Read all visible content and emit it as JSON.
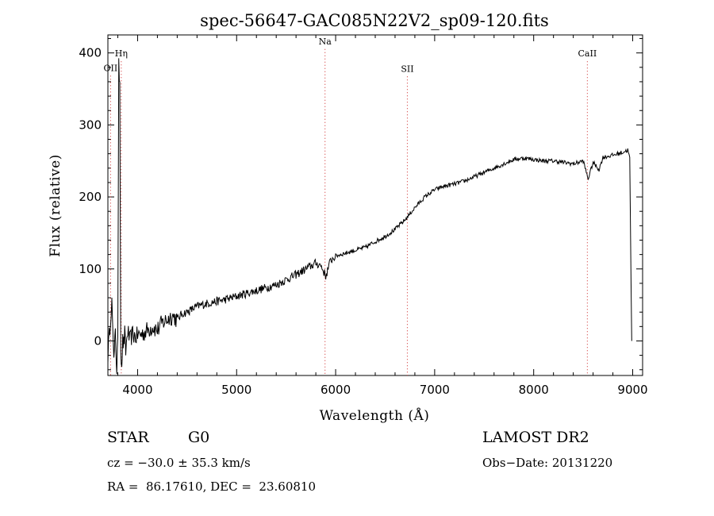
{
  "chart_data": {
    "type": "line",
    "title": "spec-56647-GAC085N22V2_sp09-120.fits",
    "xlabel": "Wavelength (Å)",
    "ylabel": "Flux (relative)",
    "xlim": [
      3700,
      9100
    ],
    "ylim": [
      -48,
      425
    ],
    "x_ticks": [
      4000,
      5000,
      6000,
      7000,
      8000,
      9000
    ],
    "y_ticks": [
      0,
      100,
      200,
      300,
      400
    ],
    "grid": false,
    "line_color": "#000000",
    "marker_color": "#cc2222",
    "series": [
      {
        "x": [
          3700,
          3720,
          3740,
          3760,
          3775,
          3790,
          3800,
          3810,
          3820,
          3830,
          3840,
          3850,
          3860,
          3870,
          3880,
          3900,
          3920,
          3950,
          3980,
          4000,
          4050,
          4100,
          4150,
          4200,
          4250,
          4300,
          4350,
          4400,
          4450,
          4500,
          4600,
          4700,
          4800,
          4900,
          5000,
          5100,
          5200,
          5300,
          5400,
          5500,
          5600,
          5700,
          5800,
          5850,
          5900,
          5950,
          6000,
          6100,
          6200,
          6300,
          6400,
          6500,
          6600,
          6700,
          6800,
          6900,
          7000,
          7100,
          7200,
          7300,
          7400,
          7500,
          7600,
          7700,
          7800,
          7900,
          8000,
          8100,
          8200,
          8300,
          8400,
          8500,
          8550,
          8600,
          8660,
          8700,
          8800,
          8900,
          8950,
          8970,
          8990
        ],
        "y": [
          -20,
          20,
          60,
          -30,
          10,
          -40,
          5,
          380,
          360,
          -10,
          -30,
          0,
          -5,
          10,
          -15,
          15,
          0,
          10,
          5,
          8,
          10,
          15,
          20,
          15,
          25,
          30,
          35,
          30,
          38,
          40,
          48,
          52,
          55,
          58,
          62,
          66,
          70,
          74,
          78,
          85,
          92,
          100,
          108,
          105,
          90,
          112,
          118,
          122,
          126,
          130,
          138,
          145,
          155,
          168,
          185,
          200,
          210,
          215,
          218,
          222,
          228,
          234,
          240,
          246,
          252,
          254,
          252,
          250,
          250,
          248,
          246,
          250,
          225,
          248,
          238,
          255,
          258,
          262,
          265,
          255,
          0
        ]
      }
    ],
    "spectral_lines": [
      {
        "label": "OII",
        "x": 3727,
        "label_y": 375
      },
      {
        "label": "Hη",
        "x": 3835,
        "label_y": 395
      },
      {
        "label": "Na",
        "x": 5893,
        "label_y": 412
      },
      {
        "label": "SII",
        "x": 6724,
        "label_y": 374
      },
      {
        "label": "CaII",
        "x": 8542,
        "label_y": 395
      }
    ]
  },
  "info": {
    "class": "STAR",
    "subclass": "G0",
    "survey": "LAMOST DR2",
    "cz": "cz = −30.0 ± 35.3 km/s",
    "obs_date": "Obs−Date: 20131220",
    "radec": "RA =  86.17610, DEC =  23.60810"
  }
}
